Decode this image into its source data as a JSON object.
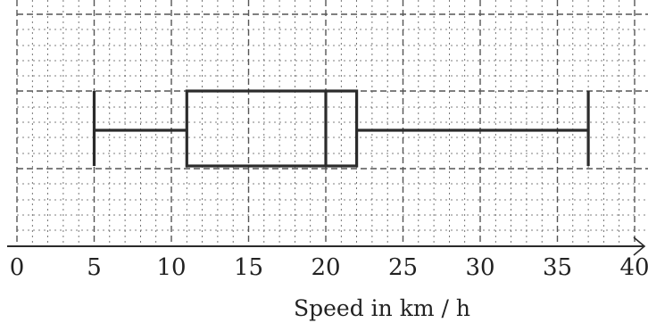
{
  "chart_data": {
    "type": "box",
    "xlabel": "Speed in km / h",
    "xlim": [
      0,
      40
    ],
    "xticks": [
      0,
      5,
      10,
      15,
      20,
      25,
      30,
      35,
      40
    ],
    "tick_labels": [
      "0",
      "5",
      "10",
      "15",
      "20",
      "25",
      "30",
      "35",
      "40"
    ],
    "grid": true,
    "box": {
      "min": 5,
      "q1": 11,
      "median": 20,
      "q3": 22,
      "max": 37
    },
    "colors": {
      "line": "#2b2b2b",
      "grid": "#555555"
    }
  }
}
